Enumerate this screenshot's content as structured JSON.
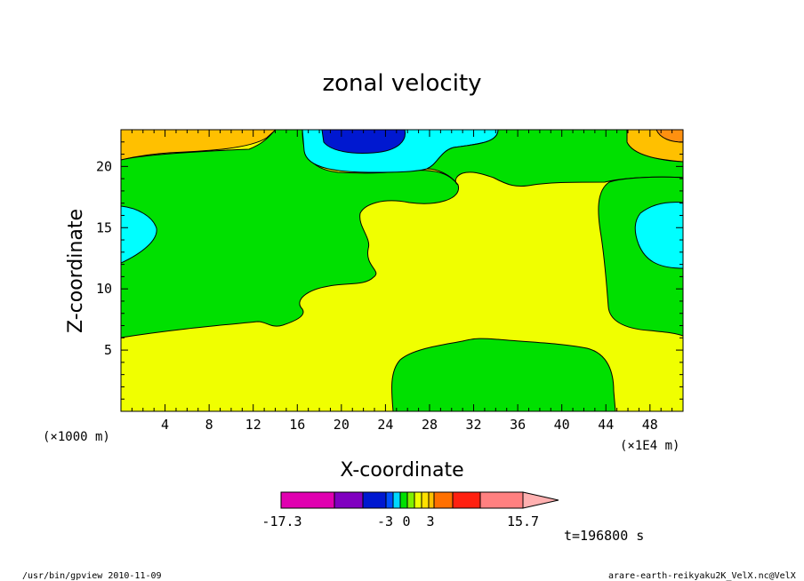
{
  "chart_data": {
    "type": "heatmap",
    "title": "zonal velocity",
    "xlabel": "X-coordinate",
    "ylabel": "Z-coordinate",
    "x_unit_left": "(×1000 m)",
    "x_unit_right": "(×1E4 m)",
    "xlim": [
      0,
      51
    ],
    "ylim": [
      0,
      23
    ],
    "x_ticks": [
      "4",
      "8",
      "12",
      "16",
      "20",
      "24",
      "28",
      "32",
      "36",
      "40",
      "44",
      "48"
    ],
    "y_ticks": [
      "5",
      "10",
      "15",
      "20"
    ],
    "colorbar": {
      "labels": [
        "-17.3",
        "-3",
        "0",
        "3",
        "15.7"
      ],
      "colors": [
        "#e000b0",
        "#8000c0",
        "#0018d0",
        "#0050ff",
        "#00d8ff",
        "#00e000",
        "#80f000",
        "#f0ff00",
        "#ffe000",
        "#ffc000",
        "#ff7000",
        "#ff2010",
        "#ff8080",
        "#ffb0b0"
      ]
    },
    "regions": [
      {
        "level": "-1.5 to 0",
        "color": "#00e000",
        "description": "large region left/center upper"
      },
      {
        "level": "0 to 1.5",
        "color": "#f0ff00",
        "description": "dominant background"
      },
      {
        "level": "-3 to -1.5",
        "color": "#00ffff",
        "description": "small cells left, right and top-center"
      },
      {
        "level": "low",
        "color": "#0018d0",
        "description": "top center core"
      },
      {
        "level": "high",
        "color": "#ffc000",
        "description": "top-left and top-right corners"
      }
    ]
  },
  "time_label": "t=196800 s",
  "footer_left": "/usr/bin/gpview   2010-11-09",
  "footer_right": "arare-earth-reikyaku2K_VelX.nc@VelX"
}
